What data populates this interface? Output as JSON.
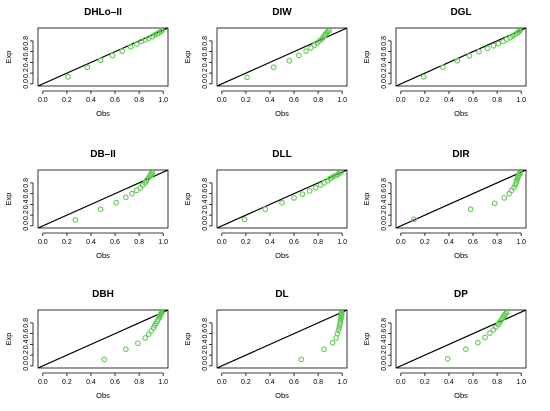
{
  "point_color": "#5ecb4f",
  "chart_data": [
    {
      "type": "scatter",
      "title": "DHLo–II",
      "xlabel": "Obs",
      "ylabel": "Exp",
      "xlim": [
        0,
        1
      ],
      "ylim": [
        0,
        1
      ],
      "xticks": [
        "0.0",
        "0.2",
        "0.4",
        "0.6",
        "0.8",
        "1.0"
      ],
      "yticks": [
        "0.0",
        "0.2",
        "0.4",
        "0.6",
        "0.8"
      ],
      "reference_line": "y = x",
      "x": [
        0.21,
        0.37,
        0.48,
        0.58,
        0.66,
        0.73,
        0.78,
        0.82,
        0.85,
        0.88,
        0.91,
        0.93,
        0.95,
        0.96,
        0.98,
        0.99
      ],
      "y": [
        0.13,
        0.31,
        0.44,
        0.53,
        0.61,
        0.69,
        0.74,
        0.79,
        0.82,
        0.85,
        0.88,
        0.91,
        0.93,
        0.95,
        0.97,
        0.99
      ]
    },
    {
      "type": "scatter",
      "title": "DIW",
      "xlabel": "Obs",
      "ylabel": "Exp",
      "xlim": [
        0,
        1
      ],
      "ylim": [
        0,
        1
      ],
      "xticks": [
        "0.0",
        "0.2",
        "0.4",
        "0.6",
        "0.8",
        "1.0"
      ],
      "yticks": [
        "0.0",
        "0.2",
        "0.4",
        "0.6",
        "0.8"
      ],
      "reference_line": "y = x",
      "x": [
        0.21,
        0.43,
        0.56,
        0.64,
        0.7,
        0.74,
        0.77,
        0.79,
        0.81,
        0.83,
        0.84,
        0.85,
        0.86,
        0.87,
        0.88,
        0.89
      ],
      "y": [
        0.12,
        0.31,
        0.43,
        0.53,
        0.61,
        0.67,
        0.72,
        0.76,
        0.8,
        0.83,
        0.86,
        0.89,
        0.92,
        0.95,
        0.97,
        0.99
      ]
    },
    {
      "type": "scatter",
      "title": "DGL",
      "xlabel": "Obs",
      "ylabel": "Exp",
      "xlim": [
        0,
        1
      ],
      "ylim": [
        0,
        1
      ],
      "xticks": [
        "0.0",
        "0.2",
        "0.4",
        "0.6",
        "0.8",
        "1.0"
      ],
      "yticks": [
        "0.0",
        "0.2",
        "0.4",
        "0.6",
        "0.8"
      ],
      "reference_line": "y = x",
      "x": [
        0.19,
        0.35,
        0.47,
        0.57,
        0.65,
        0.72,
        0.77,
        0.81,
        0.85,
        0.88,
        0.91,
        0.93,
        0.95,
        0.97,
        0.98,
        0.99
      ],
      "y": [
        0.13,
        0.31,
        0.43,
        0.52,
        0.6,
        0.66,
        0.71,
        0.75,
        0.79,
        0.83,
        0.86,
        0.89,
        0.92,
        0.95,
        0.97,
        0.99
      ]
    },
    {
      "type": "scatter",
      "title": "DB–II",
      "xlabel": "Obs",
      "ylabel": "Exp",
      "xlim": [
        0,
        1
      ],
      "ylim": [
        0,
        1
      ],
      "xticks": [
        "0.0",
        "0.2",
        "0.4",
        "0.6",
        "0.8",
        "1.0"
      ],
      "yticks": [
        "0.0",
        "0.2",
        "0.4",
        "0.6",
        "0.8"
      ],
      "reference_line": "y = x",
      "x": [
        0.27,
        0.48,
        0.61,
        0.69,
        0.74,
        0.78,
        0.81,
        0.83,
        0.85,
        0.86,
        0.87,
        0.88,
        0.89,
        0.9,
        0.9,
        0.91
      ],
      "y": [
        0.11,
        0.31,
        0.43,
        0.53,
        0.6,
        0.66,
        0.71,
        0.76,
        0.8,
        0.84,
        0.87,
        0.9,
        0.93,
        0.95,
        0.97,
        0.99
      ]
    },
    {
      "type": "scatter",
      "title": "DLL",
      "xlabel": "Obs",
      "ylabel": "Exp",
      "xlim": [
        0,
        1
      ],
      "ylim": [
        0,
        1
      ],
      "xticks": [
        "0.0",
        "0.2",
        "0.4",
        "0.6",
        "0.8",
        "1.0"
      ],
      "yticks": [
        "0.0",
        "0.2",
        "0.4",
        "0.6",
        "0.8"
      ],
      "reference_line": "y = x",
      "x": [
        0.19,
        0.36,
        0.5,
        0.6,
        0.67,
        0.73,
        0.78,
        0.82,
        0.85,
        0.88,
        0.9,
        0.92,
        0.94,
        0.96,
        0.97,
        0.99
      ],
      "y": [
        0.12,
        0.31,
        0.43,
        0.52,
        0.59,
        0.65,
        0.71,
        0.76,
        0.8,
        0.84,
        0.88,
        0.91,
        0.93,
        0.95,
        0.97,
        0.99
      ]
    },
    {
      "type": "scatter",
      "title": "DIR",
      "xlabel": "Obs",
      "ylabel": "Exp",
      "xlim": [
        0,
        1
      ],
      "ylim": [
        0,
        1
      ],
      "xticks": [
        "0.0",
        "0.2",
        "0.4",
        "0.6",
        "0.8",
        "1.0"
      ],
      "yticks": [
        "0.0",
        "0.2",
        "0.4",
        "0.6",
        "0.8"
      ],
      "reference_line": "y = x",
      "x": [
        0.11,
        0.58,
        0.78,
        0.86,
        0.9,
        0.92,
        0.94,
        0.95,
        0.96,
        0.96,
        0.97,
        0.97,
        0.98,
        0.98,
        0.99,
        0.99
      ],
      "y": [
        0.12,
        0.31,
        0.42,
        0.52,
        0.6,
        0.66,
        0.71,
        0.76,
        0.8,
        0.84,
        0.87,
        0.9,
        0.93,
        0.95,
        0.97,
        0.99
      ]
    },
    {
      "type": "scatter",
      "title": "DBH",
      "xlabel": "Obs",
      "ylabel": "Exp",
      "xlim": [
        0,
        1
      ],
      "ylim": [
        0,
        1
      ],
      "xticks": [
        "0.0",
        "0.2",
        "0.4",
        "0.6",
        "0.8",
        "1.0"
      ],
      "yticks": [
        "0.0",
        "0.2",
        "0.4",
        "0.6",
        "0.8"
      ],
      "reference_line": "y = x",
      "x": [
        0.51,
        0.69,
        0.79,
        0.85,
        0.88,
        0.9,
        0.92,
        0.93,
        0.94,
        0.95,
        0.96,
        0.97,
        0.97,
        0.98,
        0.98,
        0.99
      ],
      "y": [
        0.12,
        0.31,
        0.42,
        0.52,
        0.59,
        0.65,
        0.71,
        0.75,
        0.79,
        0.83,
        0.87,
        0.9,
        0.93,
        0.95,
        0.97,
        0.99
      ]
    },
    {
      "type": "scatter",
      "title": "DL",
      "xlabel": "Obs",
      "ylabel": "Exp",
      "xlim": [
        0,
        1
      ],
      "ylim": [
        0,
        1
      ],
      "xticks": [
        "0.0",
        "0.2",
        "0.4",
        "0.6",
        "0.8",
        "1.0"
      ],
      "yticks": [
        "0.0",
        "0.2",
        "0.4",
        "0.6",
        "0.8"
      ],
      "reference_line": "y = x",
      "x": [
        0.66,
        0.85,
        0.92,
        0.95,
        0.96,
        0.97,
        0.975,
        0.98,
        0.985,
        0.985,
        0.99,
        0.99,
        0.99,
        0.995,
        0.995,
        0.995
      ],
      "y": [
        0.12,
        0.31,
        0.43,
        0.52,
        0.6,
        0.66,
        0.71,
        0.76,
        0.8,
        0.84,
        0.87,
        0.9,
        0.93,
        0.95,
        0.97,
        0.99
      ]
    },
    {
      "type": "scatter",
      "title": "DP",
      "xlabel": "Obs",
      "ylabel": "Exp",
      "xlim": [
        0,
        1
      ],
      "ylim": [
        0,
        1
      ],
      "xticks": [
        "0.0",
        "0.2",
        "0.4",
        "0.6",
        "0.8",
        "1.0"
      ],
      "yticks": [
        "0.0",
        "0.2",
        "0.4",
        "0.6",
        "0.8"
      ],
      "reference_line": "y = x",
      "x": [
        0.39,
        0.54,
        0.64,
        0.7,
        0.74,
        0.77,
        0.79,
        0.81,
        0.82,
        0.83,
        0.84,
        0.85,
        0.86,
        0.86,
        0.87,
        0.88
      ],
      "y": [
        0.13,
        0.31,
        0.43,
        0.53,
        0.61,
        0.67,
        0.72,
        0.77,
        0.81,
        0.84,
        0.87,
        0.9,
        0.93,
        0.95,
        0.97,
        0.99
      ]
    }
  ]
}
